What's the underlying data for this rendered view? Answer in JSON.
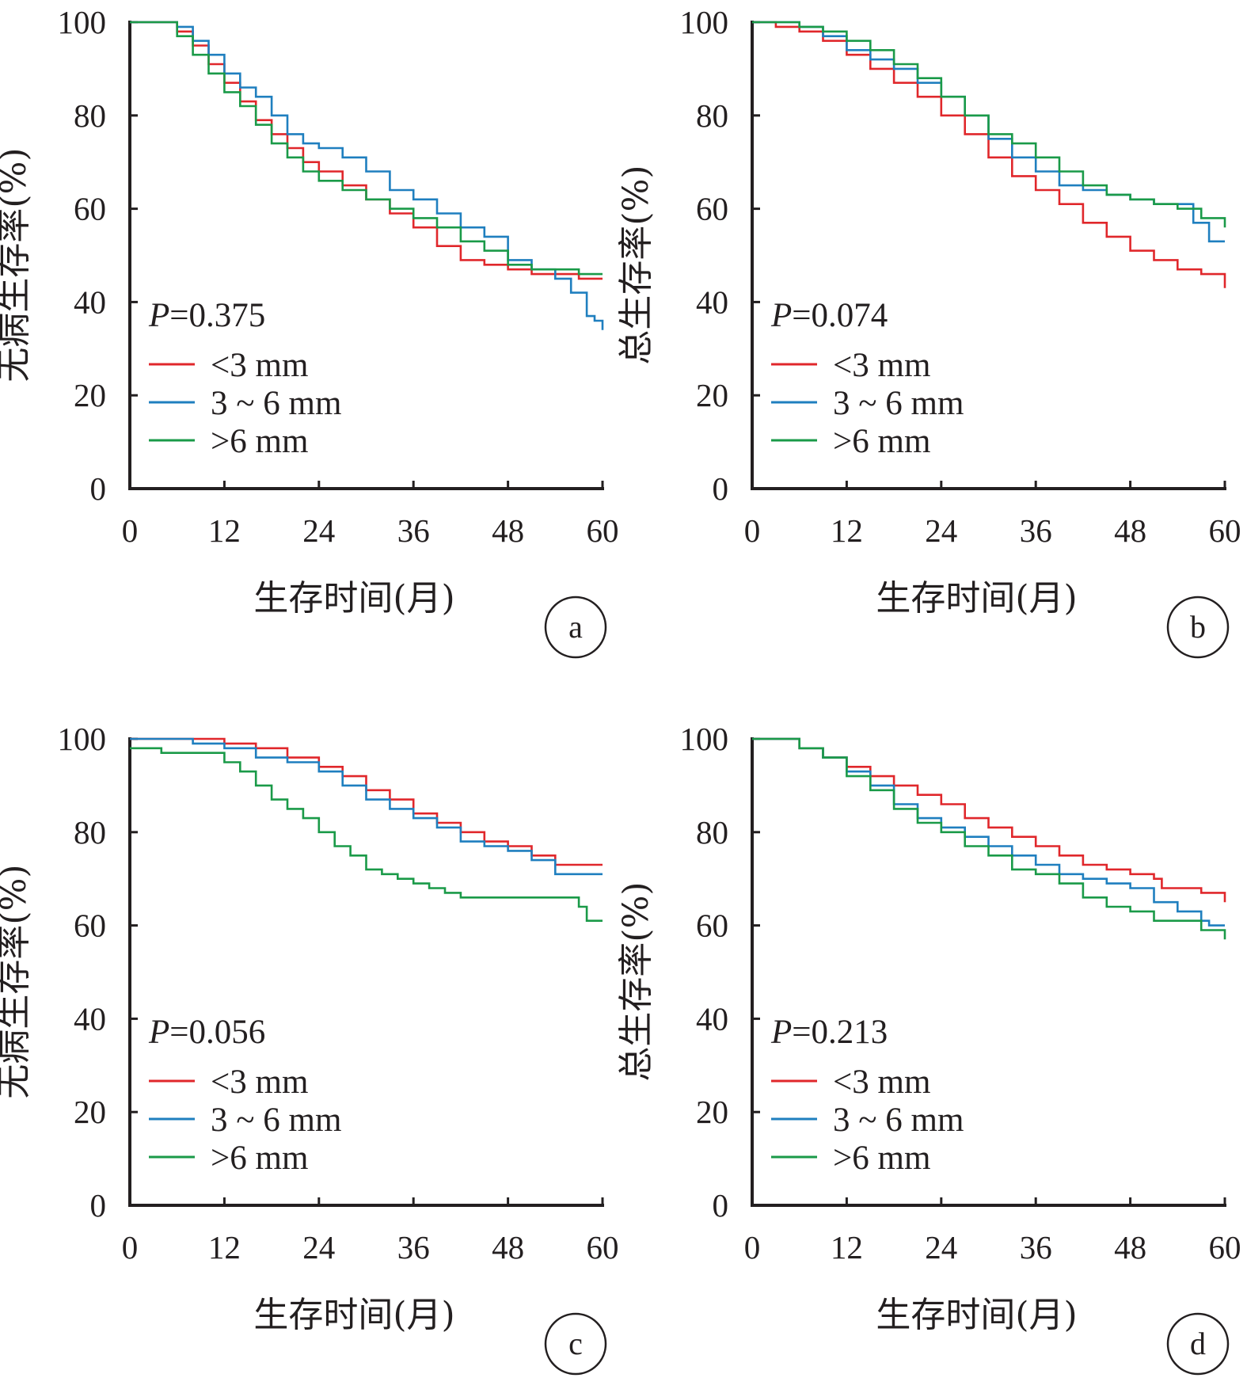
{
  "colors": {
    "axis": "#231f20",
    "series": [
      "#e0272b",
      "#1f7fbf",
      "#1a9a48"
    ]
  },
  "panels": [
    {
      "letter": "a",
      "p_italic": "P",
      "p_value": "=0.375",
      "xlabel": "生存时间(月)",
      "ylabel": "无病生存率(%)",
      "legend": [
        "<3 mm",
        "3 ~ 6 mm",
        ">6 mm"
      ]
    },
    {
      "letter": "b",
      "p_italic": "P",
      "p_value": "=0.074",
      "xlabel": "生存时间(月)",
      "ylabel": "总生存率(%)",
      "legend": [
        "<3 mm",
        "3 ~ 6 mm",
        ">6 mm"
      ]
    },
    {
      "letter": "c",
      "p_italic": "P",
      "p_value": "=0.056",
      "xlabel": "生存时间(月)",
      "ylabel": "无病生存率(%)",
      "legend": [
        "<3 mm",
        "3 ~ 6 mm",
        ">6 mm"
      ]
    },
    {
      "letter": "d",
      "p_italic": "P",
      "p_value": "=0.213",
      "xlabel": "生存时间(月)",
      "ylabel": "总生存率(%)",
      "legend": [
        "<3 mm",
        "3 ~ 6 mm",
        ">6 mm"
      ]
    }
  ],
  "chart_data": [
    {
      "type": "line",
      "panel": "a",
      "xlabel": "生存时间(月)",
      "ylabel": "无病生存率(%)",
      "xlim": [
        0,
        60
      ],
      "ylim": [
        0,
        100
      ],
      "xticks": [
        0,
        12,
        24,
        36,
        48,
        60
      ],
      "yticks": [
        0,
        20,
        40,
        60,
        80,
        100
      ],
      "annotation": "P=0.375",
      "series": [
        {
          "name": "<3 mm",
          "x": [
            0,
            4,
            6,
            8,
            10,
            12,
            14,
            16,
            18,
            20,
            22,
            24,
            27,
            30,
            33,
            36,
            39,
            42,
            45,
            48,
            51,
            54,
            57,
            60
          ],
          "y": [
            100,
            100,
            98,
            95,
            91,
            87,
            83,
            79,
            76,
            73,
            70,
            68,
            65,
            62,
            59,
            56,
            52,
            49,
            48,
            47,
            46,
            46,
            45,
            45
          ]
        },
        {
          "name": "3 ~ 6 mm",
          "x": [
            0,
            4,
            6,
            8,
            10,
            12,
            14,
            16,
            18,
            20,
            22,
            24,
            27,
            30,
            33,
            36,
            39,
            42,
            45,
            48,
            51,
            54,
            56,
            58,
            59,
            60
          ],
          "y": [
            100,
            100,
            99,
            96,
            93,
            89,
            86,
            84,
            80,
            76,
            74,
            73,
            71,
            68,
            64,
            62,
            59,
            56,
            54,
            49,
            47,
            45,
            42,
            37,
            36,
            34
          ]
        },
        {
          "name": ">6 mm",
          "x": [
            0,
            4,
            6,
            8,
            10,
            12,
            14,
            16,
            18,
            20,
            22,
            24,
            27,
            30,
            33,
            36,
            39,
            42,
            45,
            48,
            51,
            54,
            57,
            60
          ],
          "y": [
            100,
            100,
            97,
            93,
            89,
            85,
            82,
            78,
            74,
            71,
            68,
            66,
            64,
            62,
            60,
            58,
            56,
            53,
            51,
            48,
            47,
            47,
            46,
            46
          ]
        }
      ]
    },
    {
      "type": "line",
      "panel": "b",
      "xlabel": "生存时间(月)",
      "ylabel": "总生存率(%)",
      "xlim": [
        0,
        60
      ],
      "ylim": [
        0,
        100
      ],
      "xticks": [
        0,
        12,
        24,
        36,
        48,
        60
      ],
      "yticks": [
        0,
        20,
        40,
        60,
        80,
        100
      ],
      "annotation": "P=0.074",
      "series": [
        {
          "name": "<3 mm",
          "x": [
            0,
            3,
            6,
            9,
            12,
            15,
            18,
            21,
            24,
            27,
            30,
            33,
            36,
            39,
            42,
            45,
            48,
            51,
            54,
            57,
            60
          ],
          "y": [
            100,
            99,
            98,
            96,
            93,
            90,
            87,
            84,
            80,
            76,
            71,
            67,
            64,
            61,
            57,
            54,
            51,
            49,
            47,
            46,
            43
          ]
        },
        {
          "name": "3 ~ 6 mm",
          "x": [
            0,
            3,
            6,
            9,
            12,
            15,
            18,
            21,
            24,
            27,
            30,
            33,
            36,
            39,
            42,
            45,
            48,
            51,
            54,
            56,
            58,
            60
          ],
          "y": [
            100,
            100,
            99,
            97,
            94,
            92,
            90,
            87,
            84,
            80,
            75,
            71,
            68,
            65,
            64,
            63,
            62,
            61,
            61,
            57,
            53,
            53
          ]
        },
        {
          "name": ">6 mm",
          "x": [
            0,
            3,
            6,
            9,
            12,
            15,
            18,
            21,
            24,
            27,
            30,
            33,
            36,
            39,
            42,
            45,
            48,
            51,
            54,
            57,
            60
          ],
          "y": [
            100,
            100,
            99,
            98,
            96,
            94,
            91,
            88,
            84,
            80,
            76,
            74,
            71,
            68,
            65,
            63,
            62,
            61,
            60,
            58,
            56
          ]
        }
      ]
    },
    {
      "type": "line",
      "panel": "c",
      "xlabel": "生存时间(月)",
      "ylabel": "无病生存率(%)",
      "xlim": [
        0,
        60
      ],
      "ylim": [
        0,
        100
      ],
      "xticks": [
        0,
        12,
        24,
        36,
        48,
        60
      ],
      "yticks": [
        0,
        20,
        40,
        60,
        80,
        100
      ],
      "annotation": "P=0.056",
      "series": [
        {
          "name": "<3 mm",
          "x": [
            0,
            4,
            8,
            12,
            16,
            20,
            24,
            27,
            30,
            33,
            36,
            39,
            42,
            45,
            48,
            51,
            54,
            56,
            58,
            60
          ],
          "y": [
            100,
            100,
            100,
            99,
            98,
            96,
            94,
            92,
            89,
            87,
            84,
            82,
            80,
            78,
            77,
            75,
            73,
            73,
            73,
            73
          ]
        },
        {
          "name": "3 ~ 6 mm",
          "x": [
            0,
            4,
            8,
            12,
            16,
            20,
            24,
            27,
            30,
            33,
            36,
            39,
            42,
            45,
            48,
            51,
            54,
            56,
            58,
            60
          ],
          "y": [
            100,
            100,
            99,
            98,
            96,
            95,
            93,
            90,
            87,
            85,
            83,
            81,
            78,
            77,
            76,
            74,
            71,
            71,
            71,
            71
          ]
        },
        {
          "name": ">6 mm",
          "x": [
            0,
            2,
            4,
            6,
            8,
            10,
            12,
            14,
            16,
            18,
            20,
            22,
            24,
            26,
            28,
            30,
            32,
            34,
            36,
            38,
            40,
            42,
            44,
            46,
            48,
            50,
            52,
            54,
            56,
            57,
            58,
            60
          ],
          "y": [
            98,
            98,
            97,
            97,
            97,
            97,
            95,
            93,
            90,
            87,
            85,
            83,
            80,
            77,
            75,
            72,
            71,
            70,
            69,
            68,
            67,
            66,
            66,
            66,
            66,
            66,
            66,
            66,
            66,
            64,
            61,
            61
          ]
        }
      ]
    },
    {
      "type": "line",
      "panel": "d",
      "xlabel": "生存时间(月)",
      "ylabel": "总生存率(%)",
      "xlim": [
        0,
        60
      ],
      "ylim": [
        0,
        100
      ],
      "xticks": [
        0,
        12,
        24,
        36,
        48,
        60
      ],
      "yticks": [
        0,
        20,
        40,
        60,
        80,
        100
      ],
      "annotation": "P=0.213",
      "series": [
        {
          "name": "<3 mm",
          "x": [
            0,
            4,
            6,
            9,
            12,
            15,
            18,
            21,
            24,
            27,
            30,
            33,
            36,
            39,
            42,
            45,
            48,
            51,
            52,
            54,
            57,
            60
          ],
          "y": [
            100,
            100,
            98,
            96,
            94,
            92,
            90,
            88,
            86,
            83,
            81,
            79,
            77,
            75,
            73,
            72,
            71,
            70,
            68,
            68,
            67,
            65
          ]
        },
        {
          "name": "3 ~ 6 mm",
          "x": [
            0,
            4,
            6,
            9,
            12,
            15,
            18,
            21,
            24,
            27,
            30,
            33,
            36,
            39,
            42,
            45,
            48,
            51,
            54,
            57,
            58,
            60
          ],
          "y": [
            100,
            100,
            98,
            96,
            93,
            90,
            86,
            83,
            81,
            79,
            77,
            75,
            73,
            71,
            70,
            69,
            68,
            65,
            63,
            61,
            60,
            60
          ]
        },
        {
          "name": ">6 mm",
          "x": [
            0,
            4,
            6,
            9,
            12,
            15,
            18,
            21,
            24,
            27,
            30,
            33,
            36,
            39,
            42,
            45,
            48,
            51,
            54,
            57,
            60
          ],
          "y": [
            100,
            100,
            98,
            96,
            92,
            89,
            85,
            82,
            80,
            77,
            75,
            72,
            71,
            69,
            66,
            64,
            63,
            61,
            61,
            59,
            57
          ]
        }
      ]
    }
  ]
}
